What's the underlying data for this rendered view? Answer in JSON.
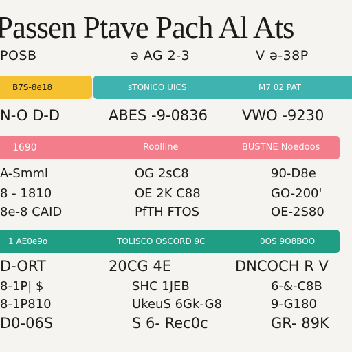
{
  "header": {
    "title": "Passen Ptave Pach Al Ats",
    "sub_left": "POSB",
    "sub_mid": "ə AG 2-3",
    "sub_right": "V ə-38P"
  },
  "band1": {
    "left": "B7S-8e18",
    "mid": "sTONICO UICS",
    "right": "M7 02 PAT",
    "colors": {
      "yellow": "#f6c131",
      "teal": "#3fb3b0"
    }
  },
  "row1": {
    "left": "N-O D-D",
    "mid": "ABES -9-0836",
    "right": "VWO -9230"
  },
  "band2": {
    "left": "1690",
    "mid": "Roolline",
    "right": "BUSTNE Noedoos",
    "color": "#f47d8b"
  },
  "block2": {
    "left": [
      "A-Smml",
      "8 - 1810",
      "8e-8 CAID"
    ],
    "mid": [
      "OG 2sC8",
      "OE 2K C88",
      "PfTH FTOS"
    ],
    "right": [
      "90-D8e",
      "GO-200'",
      "OE-2S80"
    ]
  },
  "band3": {
    "left": "1 AE0e9o",
    "mid": "TOLISCO OSCORD 9C",
    "right": "0OS 9O8BOO",
    "color": "#1f9e84"
  },
  "block3": {
    "left": [
      "D-ORT",
      "8-1P| $",
      "8-1P810",
      "D0-06S"
    ],
    "mid": [
      "20CG 4E",
      "SHC 1JEB",
      "UkeuS 6Gk-G8",
      "S 6- Rec0c"
    ],
    "right": [
      "DNCOCH R V",
      "6-&-C8B",
      "9-G180",
      "GR- 89K"
    ]
  }
}
